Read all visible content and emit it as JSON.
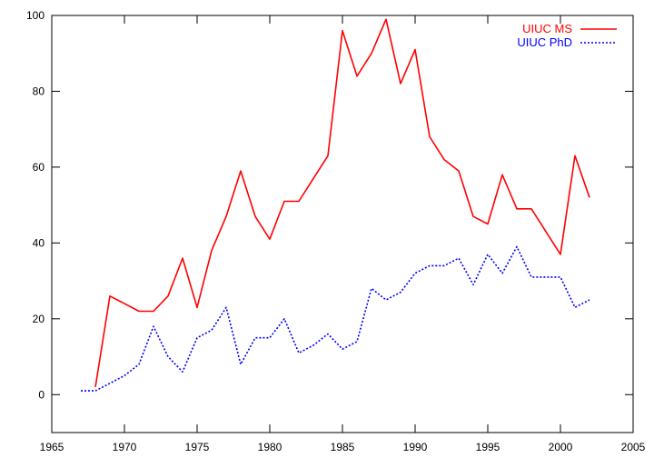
{
  "chart_data": {
    "type": "line",
    "title": "",
    "xlabel": "",
    "ylabel": "",
    "xlim": [
      1965,
      2005
    ],
    "ylim": [
      -10,
      100
    ],
    "xticks": [
      1965,
      1970,
      1975,
      1980,
      1985,
      1990,
      1995,
      2000,
      2005
    ],
    "yticks": [
      0,
      20,
      40,
      60,
      80,
      100
    ],
    "grid": false,
    "legend_position": "top-right",
    "series": [
      {
        "name": "UIUC MS",
        "color": "#ff0000",
        "style": "solid",
        "x": [
          1968,
          1969,
          1970,
          1971,
          1972,
          1973,
          1974,
          1975,
          1976,
          1977,
          1978,
          1979,
          1980,
          1981,
          1982,
          1983,
          1984,
          1985,
          1986,
          1987,
          1988,
          1989,
          1990,
          1991,
          1992,
          1993,
          1994,
          1995,
          1996,
          1997,
          1998,
          2000,
          2001,
          2002
        ],
        "y": [
          2,
          26,
          24,
          22,
          22,
          26,
          36,
          23,
          38,
          47,
          59,
          47,
          41,
          51,
          51,
          57,
          63,
          96,
          84,
          90,
          99,
          82,
          91,
          68,
          62,
          59,
          47,
          45,
          58,
          49,
          49,
          37,
          63,
          52
        ]
      },
      {
        "name": "UIUC PhD",
        "color": "#0000ff",
        "style": "dotted",
        "x": [
          1967,
          1968,
          1969,
          1970,
          1971,
          1972,
          1973,
          1974,
          1975,
          1976,
          1977,
          1978,
          1979,
          1980,
          1981,
          1982,
          1983,
          1984,
          1985,
          1986,
          1987,
          1988,
          1989,
          1990,
          1991,
          1992,
          1993,
          1994,
          1995,
          1996,
          1997,
          1998,
          1999,
          2000,
          2001,
          2002
        ],
        "y": [
          1,
          1,
          3,
          5,
          8,
          18,
          10,
          6,
          15,
          17,
          23,
          8,
          15,
          15,
          20,
          11,
          13,
          16,
          12,
          14,
          28,
          25,
          27,
          32,
          34,
          34,
          36,
          29,
          37,
          32,
          39,
          31,
          31,
          31,
          23,
          25
        ]
      }
    ]
  }
}
